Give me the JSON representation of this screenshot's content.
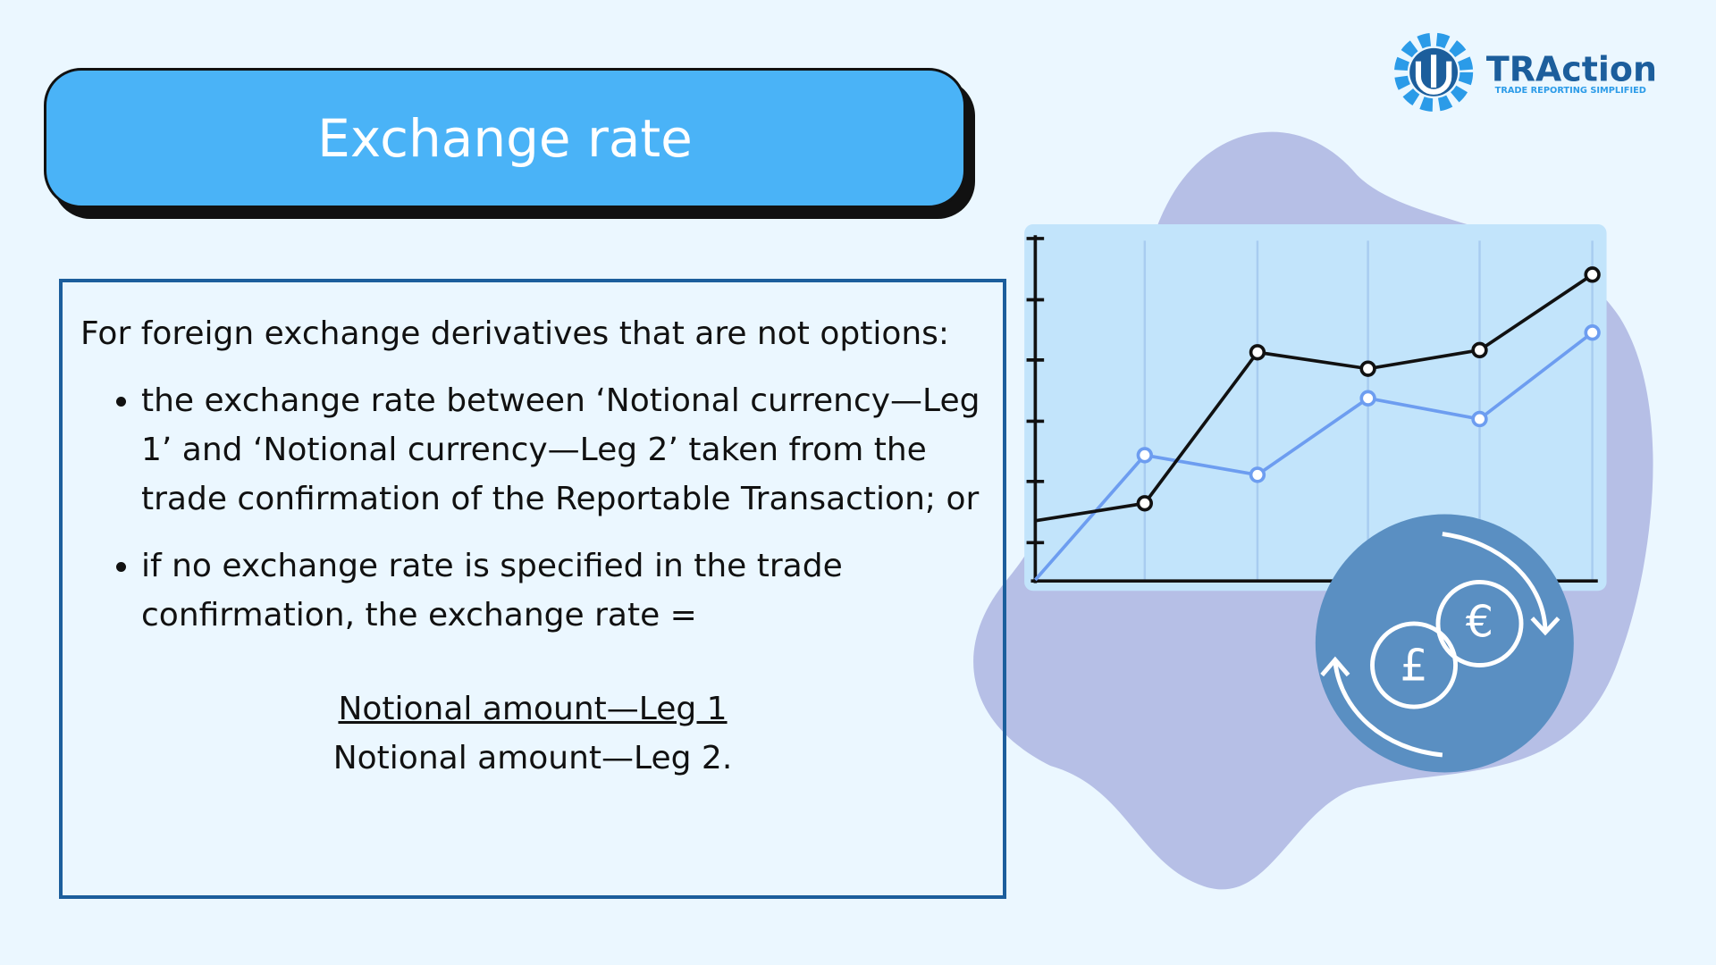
{
  "logo": {
    "name": "TRAction",
    "tagline": "TRADE REPORTING SIMPLIFIED"
  },
  "header": {
    "title": "Exchange rate"
  },
  "body": {
    "intro": "For foreign exchange derivatives that are not options:",
    "bullets": [
      "the exchange rate between ‘Notional currency—Leg 1’ and ‘Notional currency—Leg 2’ taken from the trade confirmation of the Reportable Transaction; or",
      "if no exchange rate is specified in the trade confirmation, the exchange rate ="
    ],
    "formula": {
      "numerator": "Notional amount—Leg 1",
      "denominator": "Notional amount—Leg 2."
    }
  }
}
